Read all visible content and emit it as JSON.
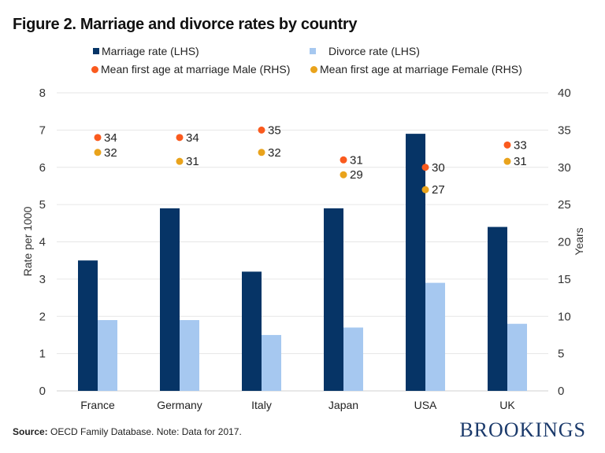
{
  "chart_data": {
    "type": "bar",
    "title": "Figure 2. Marriage and divorce rates by country",
    "categories": [
      "France",
      "Germany",
      "Italy",
      "Japan",
      "USA",
      "UK"
    ],
    "series": [
      {
        "name": "Marriage rate (LHS)",
        "kind": "bar",
        "axis": "left",
        "color": "#063466",
        "values": [
          3.5,
          4.9,
          3.2,
          4.9,
          6.9,
          4.4
        ]
      },
      {
        "name": "Divorce rate (LHS)",
        "kind": "bar",
        "axis": "left",
        "color": "#a6c8f0",
        "values": [
          1.9,
          1.9,
          1.5,
          1.7,
          2.9,
          1.8
        ]
      },
      {
        "name": "Mean first age at marriage Male (RHS)",
        "kind": "scatter",
        "axis": "right",
        "color": "#fa5a1e",
        "values": [
          34,
          34,
          35,
          31,
          30,
          33
        ],
        "labels": [
          "34",
          "34",
          "35",
          "31",
          "30",
          "33"
        ]
      },
      {
        "name": "Mean first age at marriage Female (RHS)",
        "kind": "scatter",
        "axis": "right",
        "color": "#e9a31c",
        "values": [
          32,
          30.8,
          32,
          29,
          27,
          30.8
        ],
        "labels": [
          "32",
          "31",
          "32",
          "29",
          "27",
          "31"
        ]
      }
    ],
    "ylabel": "Rate per 1000",
    "ylim": [
      0,
      8
    ],
    "yticks": [
      "0",
      "1",
      "2",
      "3",
      "4",
      "5",
      "6",
      "7",
      "8"
    ],
    "y2label": "Years",
    "y2lim": [
      0,
      40
    ],
    "y2ticks": [
      "0",
      "5",
      "10",
      "15",
      "20",
      "25",
      "30",
      "35",
      "40"
    ],
    "grid": true,
    "legend": "top"
  },
  "footer": {
    "source_label": "Source:",
    "source_text": " OECD Family Database. Note: Data for 2017.",
    "logo": "BROOKINGS"
  }
}
